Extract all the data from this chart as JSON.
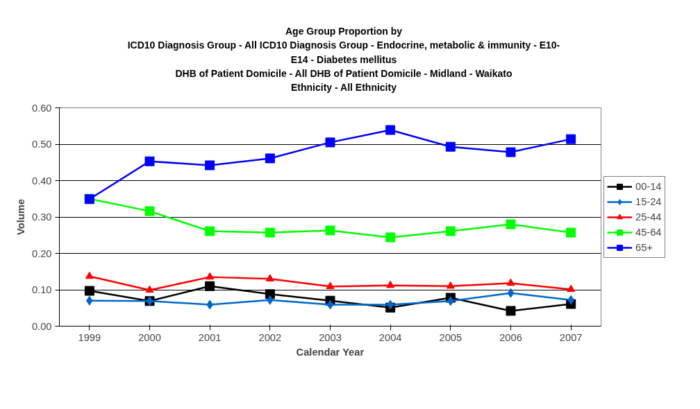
{
  "chart_data": {
    "type": "line",
    "title": "Age Group Proportion by\nICD10 Diagnosis Group - All ICD10 Diagnosis Group - Endocrine, metabolic & immunity - E10-\nE14 - Diabetes mellitus\nDHB of Patient Domicile - All DHB of Patient Domicile - Midland - Waikato\nEthnicity - All Ethnicity",
    "xlabel": "Calendar Year",
    "ylabel": "Volume",
    "categories": [
      "1999",
      "2000",
      "2001",
      "2002",
      "2003",
      "2004",
      "2005",
      "2006",
      "2007"
    ],
    "series": [
      {
        "name": "00-14",
        "color": "#000000",
        "marker": "square",
        "values": [
          0.097,
          0.069,
          0.11,
          0.088,
          0.07,
          0.051,
          0.078,
          0.042,
          0.061
        ]
      },
      {
        "name": "15-24",
        "color": "#0066cc",
        "marker": "diamond",
        "values": [
          0.07,
          0.069,
          0.059,
          0.072,
          0.059,
          0.059,
          0.069,
          0.091,
          0.072
        ]
      },
      {
        "name": "25-44",
        "color": "#ff0000",
        "marker": "triangle",
        "values": [
          0.137,
          0.099,
          0.135,
          0.13,
          0.109,
          0.112,
          0.11,
          0.118,
          0.101
        ]
      },
      {
        "name": "45-64",
        "color": "#00ff00",
        "marker": "square",
        "values": [
          0.35,
          0.316,
          0.261,
          0.257,
          0.263,
          0.244,
          0.261,
          0.28,
          0.257
        ]
      },
      {
        "name": "65+",
        "color": "#0000ff",
        "marker": "square",
        "values": [
          0.349,
          0.453,
          0.442,
          0.461,
          0.505,
          0.539,
          0.493,
          0.478,
          0.514
        ]
      }
    ],
    "ylim": [
      0,
      0.6
    ],
    "yticks": [
      {
        "value": 0,
        "label": "0.00"
      },
      {
        "value": 0.1,
        "label": "0.10"
      },
      {
        "value": 0.2,
        "label": "0.20"
      },
      {
        "value": 0.3,
        "label": "0.30"
      },
      {
        "value": 0.4,
        "label": "0.40"
      },
      {
        "value": 0.5,
        "label": "0.50"
      },
      {
        "value": 0.6,
        "label": "0.60"
      }
    ],
    "grid": "y",
    "legend": "right",
    "line_style": "solid"
  }
}
